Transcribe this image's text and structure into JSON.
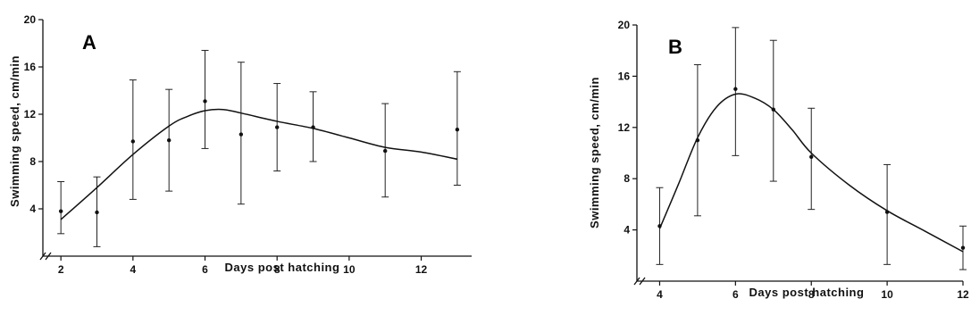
{
  "chart_data": [
    {
      "type": "line",
      "panel_label": "A",
      "xlabel": "Days post hatching",
      "ylabel": "Swimming speed, cm/min",
      "xlim": [
        1.5,
        13.4
      ],
      "ylim": [
        0,
        20
      ],
      "x_ticks": [
        2,
        4,
        6,
        8,
        10,
        12
      ],
      "y_ticks": [
        4,
        8,
        12,
        16,
        20
      ],
      "points": [
        {
          "x": 2,
          "y": 3.8,
          "err_low": 1.9,
          "err_high": 6.3
        },
        {
          "x": 3,
          "y": 3.7,
          "err_low": 0.8,
          "err_high": 6.7
        },
        {
          "x": 4,
          "y": 9.7,
          "err_low": 4.8,
          "err_high": 14.9
        },
        {
          "x": 5,
          "y": 9.8,
          "err_low": 5.5,
          "err_high": 14.1
        },
        {
          "x": 6,
          "y": 13.1,
          "err_low": 9.1,
          "err_high": 17.4
        },
        {
          "x": 7,
          "y": 10.3,
          "err_low": 4.4,
          "err_high": 16.4
        },
        {
          "x": 8,
          "y": 10.9,
          "err_low": 7.2,
          "err_high": 14.6
        },
        {
          "x": 9,
          "y": 10.9,
          "err_low": 8.0,
          "err_high": 13.9
        },
        {
          "x": 11,
          "y": 8.9,
          "err_low": 5.0,
          "err_high": 12.9
        },
        {
          "x": 13,
          "y": 10.7,
          "err_low": 6.0,
          "err_high": 15.6
        }
      ],
      "fit_curve": [
        {
          "x": 2,
          "y": 3.1
        },
        {
          "x": 3,
          "y": 5.8
        },
        {
          "x": 4,
          "y": 8.6
        },
        {
          "x": 5,
          "y": 11.0
        },
        {
          "x": 5.5,
          "y": 11.8
        },
        {
          "x": 6,
          "y": 12.3
        },
        {
          "x": 6.5,
          "y": 12.4
        },
        {
          "x": 7,
          "y": 12.1
        },
        {
          "x": 8,
          "y": 11.4
        },
        {
          "x": 9,
          "y": 10.8
        },
        {
          "x": 10,
          "y": 10.0
        },
        {
          "x": 11,
          "y": 9.2
        },
        {
          "x": 12,
          "y": 8.8
        },
        {
          "x": 13,
          "y": 8.2
        }
      ]
    },
    {
      "type": "line",
      "panel_label": "B",
      "xlabel": "Days post hatching",
      "ylabel": "Swimming speed, cm/min",
      "xlim": [
        3.4,
        12
      ],
      "ylim": [
        0,
        20
      ],
      "x_ticks": [
        4,
        6,
        8,
        10,
        12
      ],
      "y_ticks": [
        4,
        8,
        12,
        16,
        20
      ],
      "points": [
        {
          "x": 4,
          "y": 4.3,
          "err_low": 1.3,
          "err_high": 7.3
        },
        {
          "x": 5,
          "y": 11.0,
          "err_low": 5.1,
          "err_high": 16.9
        },
        {
          "x": 6,
          "y": 15.0,
          "err_low": 9.8,
          "err_high": 19.8
        },
        {
          "x": 7,
          "y": 13.4,
          "err_low": 7.8,
          "err_high": 18.8
        },
        {
          "x": 8,
          "y": 9.7,
          "err_low": 5.6,
          "err_high": 13.5
        },
        {
          "x": 10,
          "y": 5.4,
          "err_low": 1.3,
          "err_high": 9.1
        },
        {
          "x": 12,
          "y": 2.6,
          "err_low": 0.9,
          "err_high": 4.3
        }
      ],
      "fit_curve": [
        {
          "x": 4,
          "y": 4.1
        },
        {
          "x": 4.5,
          "y": 7.6
        },
        {
          "x": 5,
          "y": 11.2
        },
        {
          "x": 5.5,
          "y": 13.6
        },
        {
          "x": 6,
          "y": 14.6
        },
        {
          "x": 6.5,
          "y": 14.3
        },
        {
          "x": 7,
          "y": 13.4
        },
        {
          "x": 7.5,
          "y": 11.8
        },
        {
          "x": 8,
          "y": 10.0
        },
        {
          "x": 9,
          "y": 7.5
        },
        {
          "x": 10,
          "y": 5.5
        },
        {
          "x": 11,
          "y": 3.9
        },
        {
          "x": 12,
          "y": 2.3
        }
      ]
    }
  ]
}
